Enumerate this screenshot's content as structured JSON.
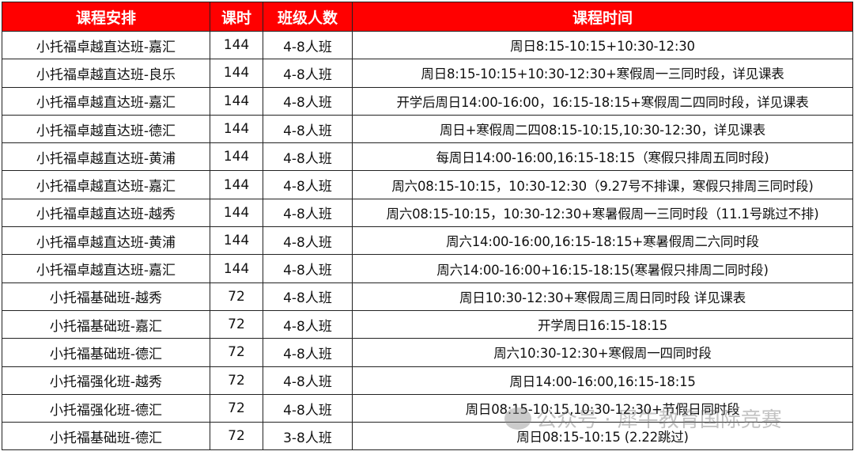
{
  "header": {
    "course": "课程安排",
    "hours": "课时",
    "class_size": "班级人数",
    "schedule": "课程时间"
  },
  "rows": [
    {
      "course": "小托福卓越直达班-嘉汇",
      "hours": "144",
      "class_size": "4-8人班",
      "schedule": "周日8:15-10:15+10:30-12:30"
    },
    {
      "course": "小托福卓越直达班-良乐",
      "hours": "144",
      "class_size": "4-8人班",
      "schedule": "周日8:15-10:15+10:30-12:30+寒假周一三同时段，详见课表"
    },
    {
      "course": "小托福卓越直达班-嘉汇",
      "hours": "144",
      "class_size": "4-8人班",
      "schedule": "开学后周日14:00-16:00，16:15-18:15+寒假周二四同时段，详见课表"
    },
    {
      "course": "小托福卓越直达班-德汇",
      "hours": "144",
      "class_size": "4-8人班",
      "schedule": "周日+寒假周二四08:15-10:15,10:30-12:30，详见课表"
    },
    {
      "course": "小托福卓越直达班-黄浦",
      "hours": "144",
      "class_size": "4-8人班",
      "schedule": "每周日14:00-16:00,16:15-18:15（寒假只排周五同时段)"
    },
    {
      "course": "小托福卓越直达班-嘉汇",
      "hours": "144",
      "class_size": "4-8人班",
      "schedule": "周六08:15-10:15，10:30-12:30（9.27号不排课，寒假只排周三同时段)"
    },
    {
      "course": "小托福卓越直达班-越秀",
      "hours": "144",
      "class_size": "4-8人班",
      "schedule": "周六08:15-10:15，10:30-12:30+寒暑假周一三同时段（11.1号跳过不排)"
    },
    {
      "course": "小托福卓越直达班-黄浦",
      "hours": "144",
      "class_size": "4-8人班",
      "schedule": "周六14:00-16:00,16:15-18:15+寒暑假周二六同时段"
    },
    {
      "course": "小托福卓越直达班-嘉汇",
      "hours": "144",
      "class_size": "4-8人班",
      "schedule": "周六14:00-16:00+16:15-18:15(寒暑假只排周二同时段)"
    },
    {
      "course": "小托福基础班-越秀",
      "hours": "72",
      "class_size": "4-8人班",
      "schedule": "周日10:30-12:30+寒假周三周日同时段 详见课表"
    },
    {
      "course": "小托福基础班-嘉汇",
      "hours": "72",
      "class_size": "4-8人班",
      "schedule": "开学周日16:15-18:15"
    },
    {
      "course": "小托福基础班-德汇",
      "hours": "72",
      "class_size": "4-8人班",
      "schedule": "周六10:30-12:30+寒假周一四同时段"
    },
    {
      "course": "小托福强化班-越秀",
      "hours": "72",
      "class_size": "4-8人班",
      "schedule": "周日14:00-16:00,16:15-18:15"
    },
    {
      "course": "小托福强化班-德汇",
      "hours": "72",
      "class_size": "4-8人班",
      "schedule": "周日08:15-10:15,10:30-12:30+节假日同时段"
    },
    {
      "course": "小托福基础班-德汇",
      "hours": "72",
      "class_size": "3-8人班",
      "schedule": "周日08:15-10:15   (2.22跳过)"
    }
  ],
  "watermark": "公众号 · 犀牛教育国际竞赛",
  "colors": {
    "header_bg": "#ff0000",
    "header_text": "#ffffff"
  }
}
